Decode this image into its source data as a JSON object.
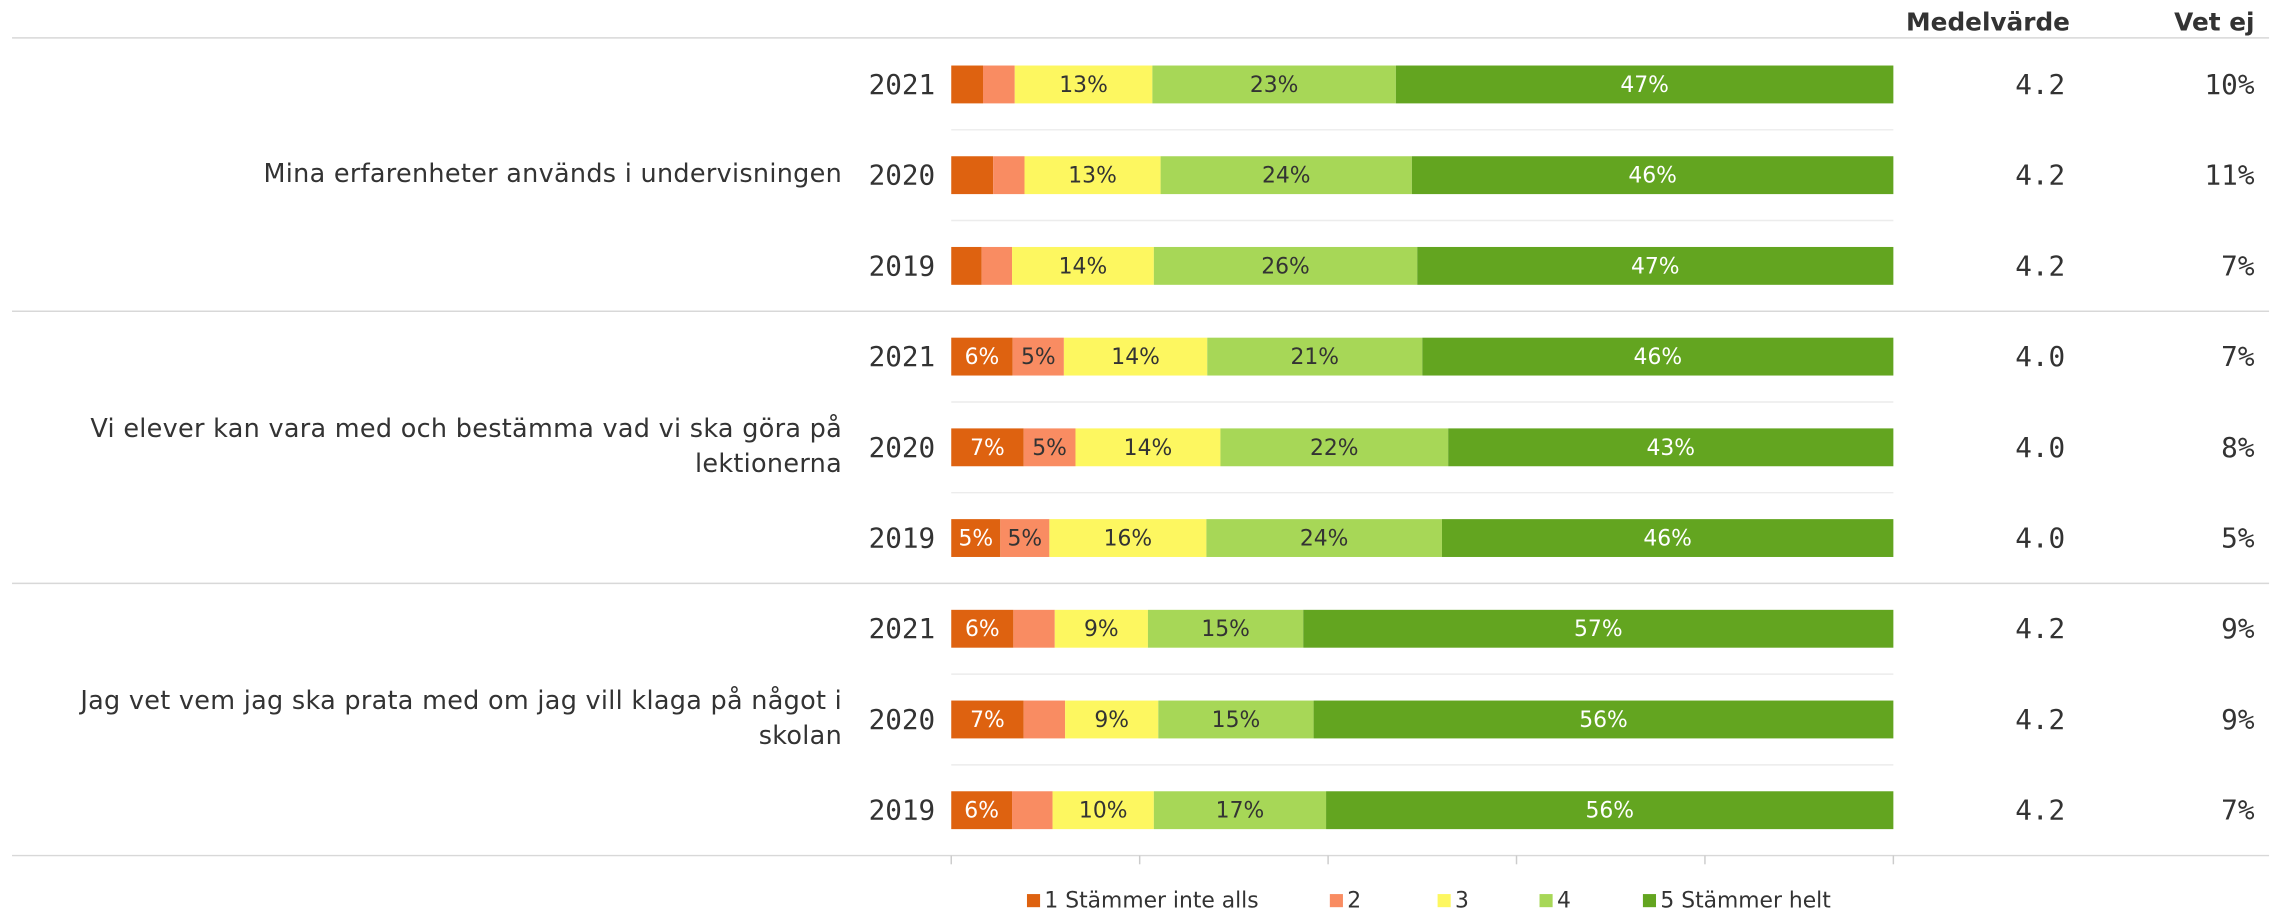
{
  "chart_data": {
    "type": "bar",
    "orientation": "horizontal",
    "stacked": true,
    "groups": [
      {
        "label": "Mina erfarenheter används i undervisningen",
        "years": [
          "2021",
          "2020",
          "2019"
        ]
      },
      {
        "label": "Vi elever kan vara med och bestämma vad vi ska göra på lektionerna",
        "years": [
          "2021",
          "2020",
          "2019"
        ]
      },
      {
        "label": "Jag vet vem jag ska prata med om jag vill klaga på något i skolan",
        "years": [
          "2021",
          "2020",
          "2019"
        ]
      }
    ],
    "xlim": [
      0,
      100
    ],
    "xticks": [
      0,
      20,
      40,
      60,
      80,
      100
    ],
    "series": [
      {
        "name": "1 Stämmer inte alls",
        "color": "#de6210",
        "label_color": "#ffffff",
        "values": [
          3,
          4,
          3,
          6,
          7,
          5,
          6,
          7,
          6
        ],
        "value_labels": [
          null,
          null,
          null,
          "6%",
          "7%",
          "5%",
          "6%",
          "7%",
          "6%"
        ]
      },
      {
        "name": "2",
        "color": "#f98c62",
        "label_color": "#333333",
        "values": [
          3,
          3,
          3,
          5,
          5,
          5,
          4,
          4,
          4
        ],
        "value_labels": [
          null,
          null,
          null,
          "5%",
          "5%",
          "5%",
          null,
          null,
          null
        ]
      },
      {
        "name": "3",
        "color": "#fdf760",
        "label_color": "#333333",
        "values": [
          13,
          13,
          14,
          14,
          14,
          16,
          9,
          9,
          10
        ],
        "value_labels": [
          "13%",
          "13%",
          "14%",
          "14%",
          "14%",
          "16%",
          "9%",
          "9%",
          "10%"
        ]
      },
      {
        "name": "4",
        "color": "#a7d757",
        "label_color": "#333333",
        "values": [
          23,
          24,
          26,
          21,
          22,
          24,
          15,
          15,
          17
        ],
        "value_labels": [
          "23%",
          "24%",
          "26%",
          "21%",
          "22%",
          "24%",
          "15%",
          "15%",
          "17%"
        ]
      },
      {
        "name": "5 Stämmer helt",
        "color": "#63a520",
        "label_color": "#ffffff",
        "values": [
          47,
          46,
          47,
          46,
          43,
          46,
          57,
          56,
          56
        ],
        "value_labels": [
          "47%",
          "46%",
          "47%",
          "46%",
          "43%",
          "46%",
          "57%",
          "56%",
          "56%"
        ]
      }
    ],
    "mean": {
      "header": "Medelvärde",
      "values": [
        4.2,
        4.2,
        4.2,
        4.0,
        4.0,
        4.0,
        4.2,
        4.2,
        4.2
      ],
      "value_labels": [
        "4.2",
        "4.2",
        "4.2",
        "4.0",
        "4.0",
        "4.0",
        "4.2",
        "4.2",
        "4.2"
      ]
    },
    "dont_know": {
      "header": "Vet ej",
      "values": [
        10,
        11,
        7,
        7,
        8,
        5,
        9,
        9,
        7
      ],
      "value_labels": [
        "10%",
        "11%",
        "7%",
        "7%",
        "8%",
        "5%",
        "9%",
        "9%",
        "7%"
      ]
    }
  }
}
